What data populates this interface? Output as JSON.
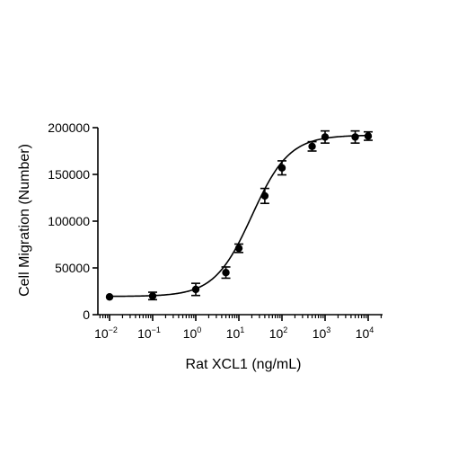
{
  "chart_data": {
    "type": "scatter",
    "title": "",
    "xlabel": "Rat XCL1 (ng/mL)",
    "ylabel": "Cell Migration (Number)",
    "x_scale": "log10",
    "xlim": [
      0.01,
      10000
    ],
    "ylim": [
      0,
      200000
    ],
    "x_tick_labels": [
      {
        "base": "10",
        "exp": "-2",
        "value": 0.01
      },
      {
        "base": "10",
        "exp": "-1",
        "value": 0.1
      },
      {
        "base": "10",
        "exp": "0",
        "value": 1
      },
      {
        "base": "10",
        "exp": "1",
        "value": 10
      },
      {
        "base": "10",
        "exp": "2",
        "value": 100
      },
      {
        "base": "10",
        "exp": "3",
        "value": 1000
      },
      {
        "base": "10",
        "exp": "4",
        "value": 10000
      }
    ],
    "y_ticks": [
      0,
      50000,
      100000,
      150000,
      200000
    ],
    "y_tick_labels": [
      "0",
      "50000",
      "100000",
      "150000",
      "200000"
    ],
    "grid": false,
    "legend": "none",
    "colors": {
      "marker": "#000000",
      "line": "#000000"
    },
    "series": [
      {
        "x": [
          0.01,
          0.1,
          1,
          5,
          10,
          40,
          100,
          500,
          1000,
          5000,
          10000
        ],
        "y": [
          19000,
          20000,
          27000,
          45000,
          71000,
          127000,
          157000,
          180000,
          190000,
          190000,
          191000
        ],
        "error": [
          0,
          4000,
          6500,
          6000,
          4500,
          8000,
          7500,
          5000,
          6500,
          6500,
          4500
        ]
      }
    ],
    "fit": {
      "type": "four-parameter-logistic",
      "bottom": 19500,
      "top": 192000,
      "ec50": 20,
      "hill": 1
    }
  }
}
